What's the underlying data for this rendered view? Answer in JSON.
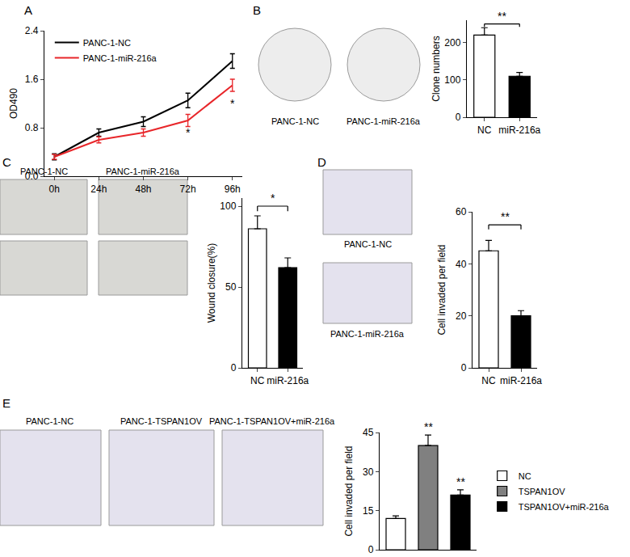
{
  "panel_labels": [
    "A",
    "B",
    "C",
    "D",
    "E"
  ],
  "images": {
    "B": [
      "PANC-1-NC",
      "PANC-1-miR-216a"
    ],
    "C": [
      "PANC-1-NC",
      "PANC-1-miR-216a"
    ],
    "D": [
      "PANC-1-NC",
      "PANC-1-miR-216a"
    ],
    "E": [
      "PANC-1-NC",
      "PANC-1-TSPAN1OV",
      "PANC-1-TSPAN1OV+miR-216a"
    ]
  },
  "chart_data": [
    {
      "type": "line",
      "y_label": "OD490",
      "categories": [
        "0h",
        "24h",
        "48h",
        "72h",
        "96h"
      ],
      "series": [
        {
          "name": "PANC-1-NC",
          "color": "#000000",
          "values": [
            0.32,
            0.72,
            0.9,
            1.25,
            1.9
          ],
          "errors": [
            0.05,
            0.06,
            0.08,
            0.12,
            0.12
          ]
        },
        {
          "name": "PANC-1-miR-216a",
          "color": "#e8262a",
          "values": [
            0.32,
            0.6,
            0.72,
            0.92,
            1.5
          ],
          "errors": [
            0.04,
            0.05,
            0.06,
            0.1,
            0.1
          ]
        }
      ],
      "ylim": [
        0,
        2.4
      ],
      "yticks": [
        {
          "value": 0,
          "label": "0.0"
        },
        0.8,
        1.6,
        2.4
      ],
      "legend": "upper left",
      "grid": false,
      "annotations": [
        {
          "text": "*",
          "x": "72h",
          "y": 0.72
        },
        {
          "text": "*",
          "x": "96h",
          "y": 1.2
        }
      ]
    },
    {
      "type": "bar",
      "y_label": "Clone numbers",
      "categories": [
        "NC",
        "miR-216a"
      ],
      "values": [
        220,
        110
      ],
      "errors": [
        20,
        10
      ],
      "colors": [
        "#ffffff",
        "#000000"
      ],
      "ylim": [
        0,
        260
      ],
      "yticks": [
        0,
        100,
        200
      ],
      "grid": false,
      "annotations": [
        {
          "text": "**",
          "x": [
            "NC",
            "miR-216a"
          ],
          "y": 250
        }
      ]
    },
    {
      "type": "bar",
      "y_label": "Wound closure(%)",
      "categories": [
        "NC",
        "miR-216a"
      ],
      "values": [
        86,
        62
      ],
      "errors": [
        8,
        6
      ],
      "colors": [
        "#ffffff",
        "#000000"
      ],
      "ylim": [
        0,
        105
      ],
      "yticks": [
        0,
        50,
        100
      ],
      "grid": false,
      "annotations": [
        {
          "text": "*",
          "x": [
            "NC",
            "miR-216a"
          ],
          "y": 100
        }
      ]
    },
    {
      "type": "bar",
      "y_label": "Cell invaded per field",
      "categories": [
        "NC",
        "miR-216a"
      ],
      "values": [
        45,
        20
      ],
      "errors": [
        4,
        2
      ],
      "colors": [
        "#ffffff",
        "#000000"
      ],
      "ylim": [
        0,
        60
      ],
      "yticks": [
        0,
        20,
        40,
        60
      ],
      "grid": false,
      "annotations": [
        {
          "text": "**",
          "x": [
            "NC",
            "miR-216a"
          ],
          "y": 55
        }
      ]
    },
    {
      "type": "bar",
      "y_label": "Cell invaded per field",
      "categories": [
        "NC",
        "TSPAN1OV",
        "TSPAN1OV+miR-216a"
      ],
      "values": [
        12,
        40,
        21
      ],
      "errors": [
        1,
        4,
        2
      ],
      "colors": [
        "#ffffff",
        "#808080",
        "#000000"
      ],
      "ylim": [
        0,
        45
      ],
      "yticks": [
        0,
        15,
        30,
        45
      ],
      "grid": false,
      "legend": "right",
      "tick_labels": "y",
      "annotations": [
        {
          "text": "**",
          "x": "TSPAN1OV",
          "y": 44
        },
        {
          "text": "**",
          "x": "TSPAN1OV+miR-216a",
          "y": 23
        }
      ]
    }
  ]
}
